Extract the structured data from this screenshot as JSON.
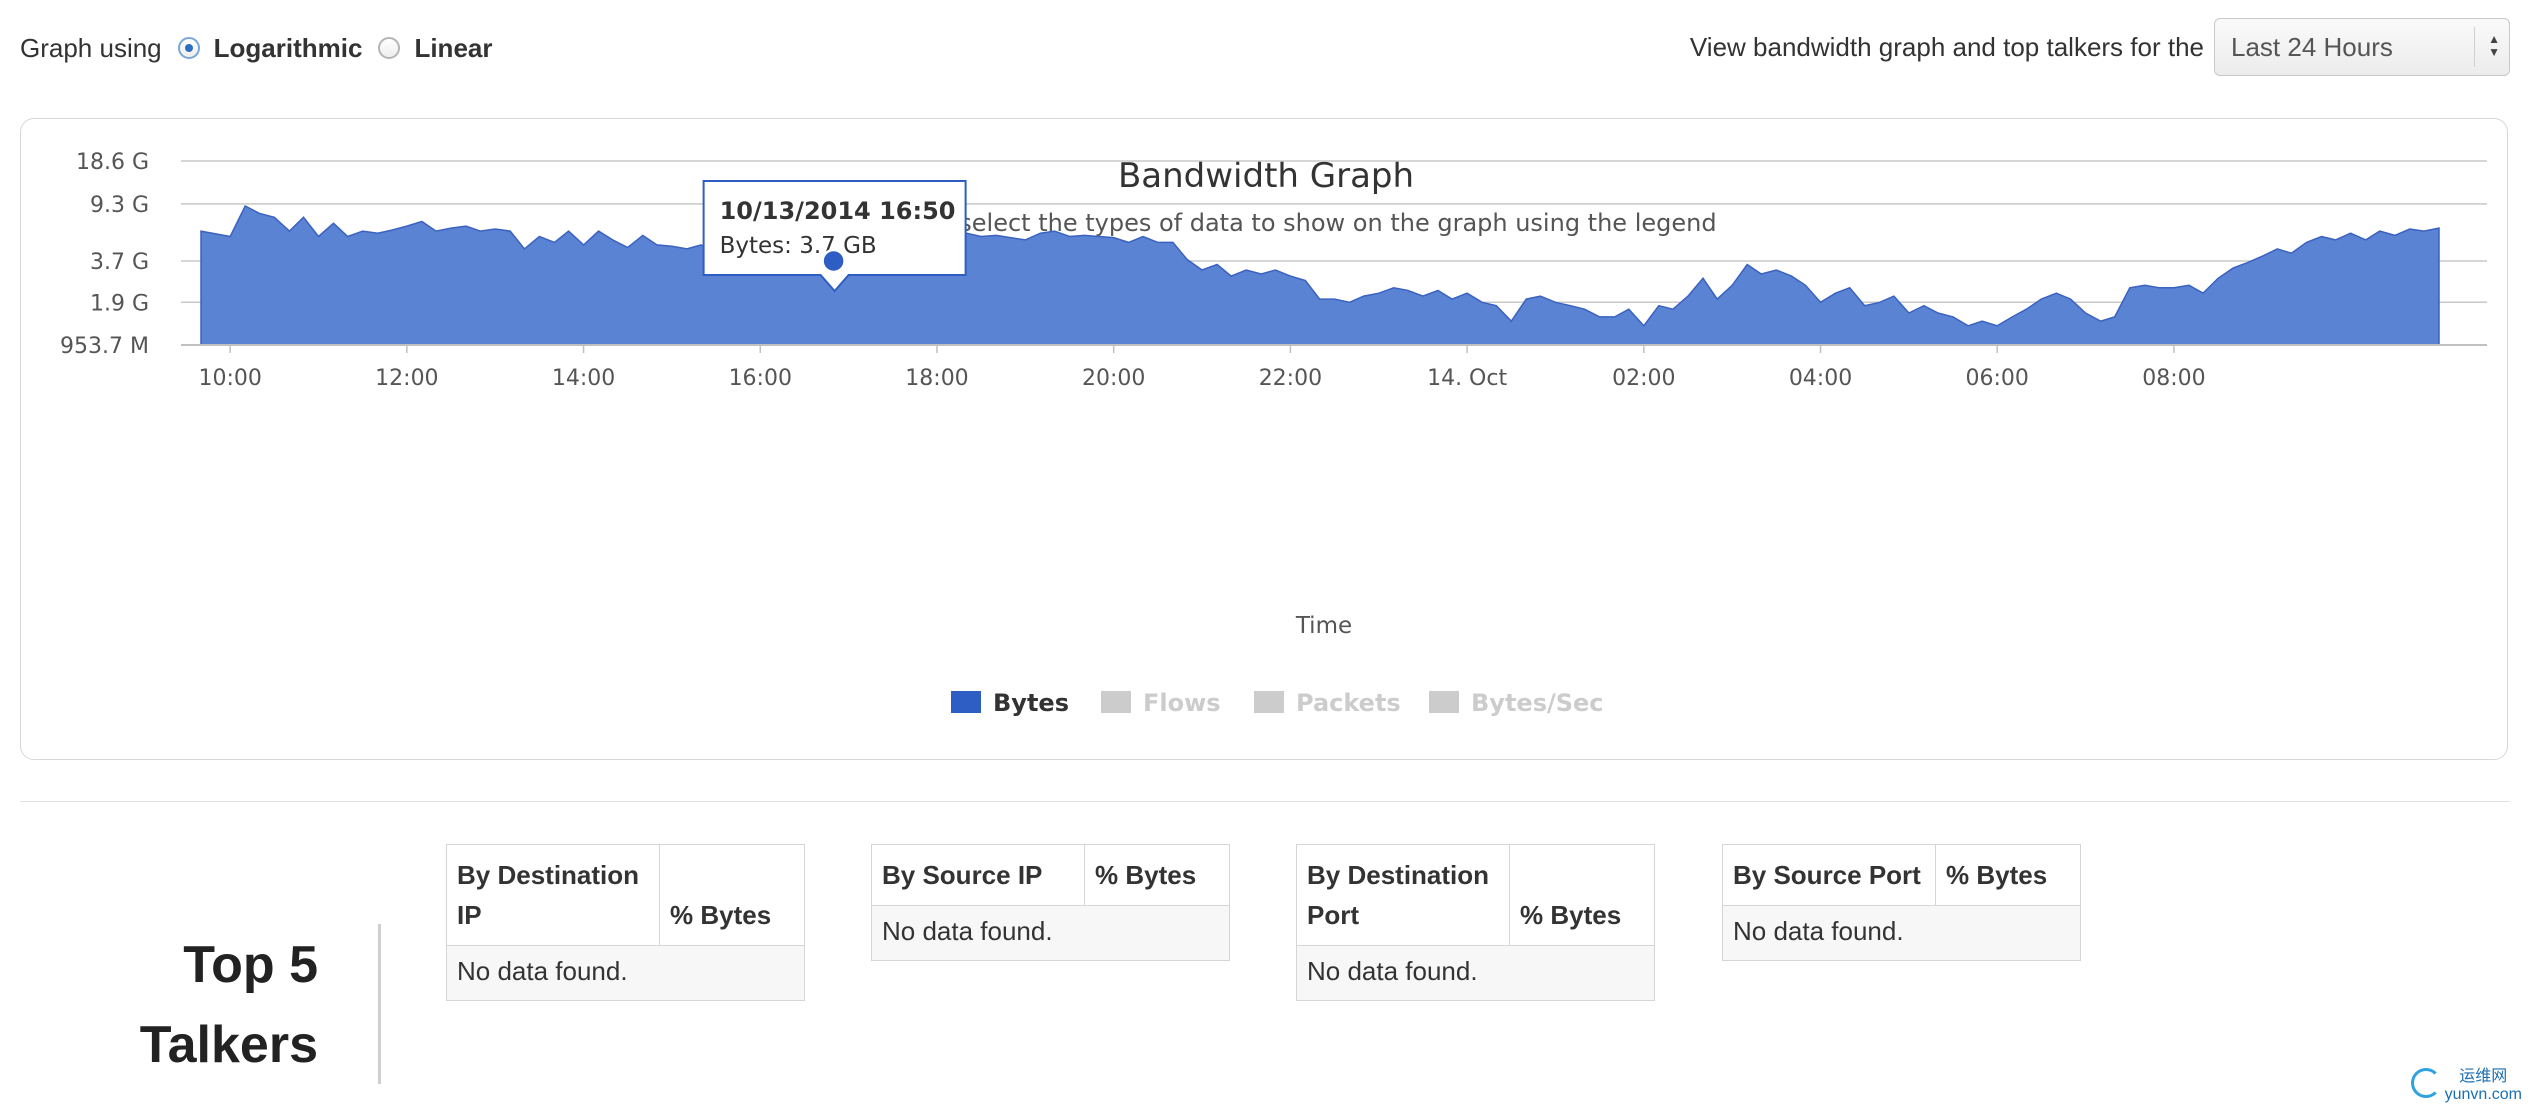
{
  "controls": {
    "graph_using": "Graph using",
    "log_label": "Logarithmic",
    "linear_label": "Linear",
    "selected_scale": "Logarithmic",
    "view_label": "View bandwidth graph and top talkers for the",
    "period_value": "Last 24 Hours"
  },
  "chart_data": {
    "type": "area",
    "title": "Bandwidth Graph",
    "subtitle": "Select or deselect the types of data to show on the graph using the legend",
    "xlabel": "Time",
    "ylabel": "",
    "y_scale": "log",
    "ylim_bytes": [
      953700000,
      18600000000
    ],
    "y_ticks": [
      {
        "label": "18.6 G",
        "value": 18600000000
      },
      {
        "label": "9.3 G",
        "value": 9300000000
      },
      {
        "label": "3.7 G",
        "value": 3700000000
      },
      {
        "label": "1.9 G",
        "value": 1900000000
      },
      {
        "label": "953.7 M",
        "value": 953700000
      }
    ],
    "x_ticks": [
      "10:00",
      "12:00",
      "14:00",
      "16:00",
      "18:00",
      "20:00",
      "22:00",
      "14. Oct",
      "02:00",
      "04:00",
      "06:00",
      "08:00"
    ],
    "x_range_hours": [
      9.67,
      33.57
    ],
    "grid": true,
    "legend": [
      "Bytes",
      "Flows",
      "Packets",
      "Bytes/Sec"
    ],
    "legend_active": [
      true,
      false,
      false,
      false
    ],
    "legend_position": "bottom-center",
    "series": [
      {
        "name": "Bytes",
        "color": "#5b83d3",
        "points": [
          [
            9.67,
            6.0
          ],
          [
            10.0,
            5.5
          ],
          [
            10.17,
            9.0
          ],
          [
            10.33,
            8.0
          ],
          [
            10.5,
            7.5
          ],
          [
            10.67,
            6.0
          ],
          [
            10.83,
            7.5
          ],
          [
            11.0,
            5.5
          ],
          [
            11.17,
            6.8
          ],
          [
            11.33,
            5.5
          ],
          [
            11.5,
            6.0
          ],
          [
            11.67,
            5.8
          ],
          [
            11.83,
            6.1
          ],
          [
            12.0,
            6.5
          ],
          [
            12.17,
            7.0
          ],
          [
            12.33,
            6.0
          ],
          [
            12.5,
            6.3
          ],
          [
            12.67,
            6.5
          ],
          [
            12.83,
            6.0
          ],
          [
            13.0,
            6.2
          ],
          [
            13.17,
            6.0
          ],
          [
            13.33,
            4.5
          ],
          [
            13.5,
            5.5
          ],
          [
            13.67,
            5.0
          ],
          [
            13.83,
            6.0
          ],
          [
            14.0,
            4.8
          ],
          [
            14.17,
            6.0
          ],
          [
            14.33,
            5.2
          ],
          [
            14.5,
            4.6
          ],
          [
            14.67,
            5.6
          ],
          [
            14.83,
            4.8
          ],
          [
            15.0,
            4.7
          ],
          [
            15.17,
            4.5
          ],
          [
            15.33,
            4.8
          ],
          [
            15.5,
            4.2
          ],
          [
            15.67,
            5.0
          ],
          [
            15.83,
            4.3
          ],
          [
            16.0,
            4.5
          ],
          [
            16.17,
            4.0
          ],
          [
            16.33,
            4.6
          ],
          [
            16.5,
            4.8
          ],
          [
            16.67,
            4.0
          ],
          [
            16.83,
            3.7
          ],
          [
            17.0,
            4.5
          ],
          [
            17.17,
            5.2
          ],
          [
            17.33,
            5.0
          ],
          [
            17.5,
            5.3
          ],
          [
            17.67,
            5.0
          ],
          [
            17.83,
            5.5
          ],
          [
            18.0,
            5.2
          ],
          [
            18.17,
            5.0
          ],
          [
            18.33,
            5.8
          ],
          [
            18.5,
            5.5
          ],
          [
            18.67,
            5.6
          ],
          [
            18.83,
            5.4
          ],
          [
            19.0,
            5.2
          ],
          [
            19.17,
            5.8
          ],
          [
            19.33,
            6.0
          ],
          [
            19.5,
            5.5
          ],
          [
            19.67,
            5.6
          ],
          [
            19.83,
            5.5
          ],
          [
            20.0,
            5.4
          ],
          [
            20.17,
            5.0
          ],
          [
            20.33,
            5.5
          ],
          [
            20.5,
            5.0
          ],
          [
            20.67,
            5.0
          ],
          [
            20.83,
            3.8
          ],
          [
            21.0,
            3.2
          ],
          [
            21.17,
            3.5
          ],
          [
            21.33,
            2.9
          ],
          [
            21.5,
            3.2
          ],
          [
            21.67,
            3.0
          ],
          [
            21.83,
            3.2
          ],
          [
            22.0,
            2.9
          ],
          [
            22.17,
            2.7
          ],
          [
            22.33,
            2.0
          ],
          [
            22.5,
            2.0
          ],
          [
            22.67,
            1.9
          ],
          [
            22.83,
            2.1
          ],
          [
            23.0,
            2.2
          ],
          [
            23.17,
            2.4
          ],
          [
            23.33,
            2.3
          ],
          [
            23.5,
            2.1
          ],
          [
            23.67,
            2.3
          ],
          [
            23.83,
            2.0
          ],
          [
            24.0,
            2.2
          ],
          [
            24.17,
            1.9
          ],
          [
            24.33,
            1.8
          ],
          [
            24.5,
            1.4
          ],
          [
            24.67,
            2.0
          ],
          [
            24.83,
            2.1
          ],
          [
            25.0,
            1.9
          ],
          [
            25.17,
            1.8
          ],
          [
            25.33,
            1.7
          ],
          [
            25.5,
            1.5
          ],
          [
            25.67,
            1.5
          ],
          [
            25.83,
            1.7
          ],
          [
            26.0,
            1.3
          ],
          [
            26.17,
            1.8
          ],
          [
            26.33,
            1.7
          ],
          [
            26.5,
            2.1
          ],
          [
            26.67,
            2.8
          ],
          [
            26.83,
            2.0
          ],
          [
            27.0,
            2.5
          ],
          [
            27.17,
            3.5
          ],
          [
            27.33,
            3.0
          ],
          [
            27.5,
            3.2
          ],
          [
            27.67,
            2.9
          ],
          [
            27.83,
            2.5
          ],
          [
            28.0,
            1.9
          ],
          [
            28.17,
            2.2
          ],
          [
            28.33,
            2.4
          ],
          [
            28.5,
            1.8
          ],
          [
            28.67,
            1.9
          ],
          [
            28.83,
            2.1
          ],
          [
            29.0,
            1.6
          ],
          [
            29.17,
            1.8
          ],
          [
            29.33,
            1.6
          ],
          [
            29.5,
            1.5
          ],
          [
            29.67,
            1.3
          ],
          [
            29.83,
            1.4
          ],
          [
            30.0,
            1.3
          ],
          [
            30.17,
            1.5
          ],
          [
            30.33,
            1.7
          ],
          [
            30.5,
            2.0
          ],
          [
            30.67,
            2.2
          ],
          [
            30.83,
            2.0
          ],
          [
            31.0,
            1.6
          ],
          [
            31.17,
            1.4
          ],
          [
            31.33,
            1.5
          ],
          [
            31.5,
            2.4
          ],
          [
            31.67,
            2.5
          ],
          [
            31.83,
            2.4
          ],
          [
            32.0,
            2.4
          ],
          [
            32.17,
            2.5
          ],
          [
            32.33,
            2.2
          ],
          [
            32.5,
            2.8
          ],
          [
            32.67,
            3.3
          ],
          [
            32.83,
            3.6
          ],
          [
            33.0,
            4.0
          ],
          [
            33.17,
            4.5
          ],
          [
            33.33,
            4.2
          ],
          [
            33.5,
            5.0
          ],
          [
            33.67,
            5.5
          ],
          [
            33.83,
            5.2
          ],
          [
            34.0,
            5.8
          ],
          [
            34.17,
            5.2
          ],
          [
            34.33,
            6.0
          ],
          [
            34.5,
            5.6
          ],
          [
            34.67,
            6.2
          ],
          [
            34.83,
            6.0
          ],
          [
            35.0,
            6.3
          ]
        ]
      }
    ],
    "tooltip": {
      "title": "10/13/2014 16:50",
      "body": "Bytes: 3.7 GB",
      "x": 16.83,
      "y": 3.7
    }
  },
  "talkers": {
    "heading_line1": "Top 5",
    "heading_line2": "Talkers",
    "tables": [
      {
        "col1": "By Destination IP",
        "col2": "% Bytes",
        "empty": "No data found."
      },
      {
        "col1": "By Source IP",
        "col2": "% Bytes",
        "empty": "No data found."
      },
      {
        "col1": "By Destination Port",
        "col2": "% Bytes",
        "empty": "No data found."
      },
      {
        "col1": "By Source Port",
        "col2": "% Bytes",
        "empty": "No data found."
      }
    ]
  },
  "watermark": {
    "line1": "运维网",
    "line2": "yunvn.com"
  }
}
